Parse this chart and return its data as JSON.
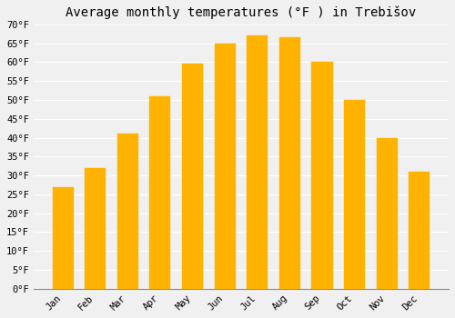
{
  "title": "Average monthly temperatures (°F ) in Trebišov",
  "months": [
    "Jan",
    "Feb",
    "Mar",
    "Apr",
    "May",
    "Jun",
    "Jul",
    "Aug",
    "Sep",
    "Oct",
    "Nov",
    "Dec"
  ],
  "values": [
    27,
    32,
    41,
    51,
    59.5,
    65,
    67,
    66.5,
    60,
    50,
    40,
    31
  ],
  "bar_color": "#FFB300",
  "bar_edge_color": "#FFB300",
  "ylim": [
    0,
    70
  ],
  "yticks": [
    0,
    5,
    10,
    15,
    20,
    25,
    30,
    35,
    40,
    45,
    50,
    55,
    60,
    65,
    70
  ],
  "ylabel_suffix": "°F",
  "background_color": "#f0f0f0",
  "grid_color": "#ffffff",
  "title_fontsize": 10,
  "tick_fontsize": 7.5,
  "font_family": "monospace",
  "bar_width": 0.65
}
